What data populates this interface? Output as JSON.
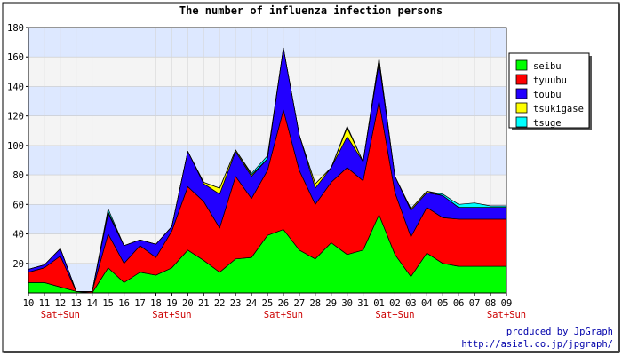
{
  "chart_data": {
    "type": "area",
    "stacked": true,
    "title": "The number of influenza infection persons",
    "categories": [
      "10",
      "11",
      "12",
      "13",
      "14",
      "15",
      "16",
      "17",
      "18",
      "19",
      "20",
      "21",
      "22",
      "23",
      "24",
      "25",
      "26",
      "27",
      "28",
      "29",
      "30",
      "31",
      "01",
      "02",
      "03",
      "04",
      "05",
      "06",
      "07",
      "08",
      "09"
    ],
    "weekend_marks": [
      {
        "category": "12",
        "label": "Sat+Sun"
      },
      {
        "category": "19",
        "label": "Sat+Sun"
      },
      {
        "category": "26",
        "label": "Sat+Sun"
      },
      {
        "category": "02",
        "label": "Sat+Sun"
      },
      {
        "category": "09",
        "label": "Sat+Sun"
      }
    ],
    "ylim": [
      0,
      180
    ],
    "yticks": [
      20,
      40,
      60,
      80,
      100,
      120,
      140,
      160,
      180
    ],
    "grid": true,
    "legend_position": "right",
    "series": [
      {
        "name": "seibu",
        "color": "#00ff00",
        "values": [
          7,
          7,
          4,
          1,
          0,
          17,
          7,
          14,
          12,
          17,
          29,
          22,
          14,
          23,
          24,
          39,
          43,
          29,
          23,
          34,
          26,
          29,
          53,
          26,
          11,
          27,
          20,
          18,
          18,
          18,
          18
        ]
      },
      {
        "name": "tyuubu",
        "color": "#ff0000",
        "values": [
          7,
          10,
          21,
          0,
          1,
          23,
          13,
          18,
          12,
          25,
          43,
          40,
          30,
          56,
          40,
          44,
          81,
          54,
          37,
          41,
          59,
          47,
          77,
          42,
          27,
          31,
          31,
          32,
          32,
          32,
          32
        ]
      },
      {
        "name": "toubu",
        "color": "#2200ff",
        "values": [
          2,
          2,
          5,
          0,
          0,
          14,
          12,
          4,
          9,
          3,
          24,
          12,
          23,
          17,
          15,
          8,
          42,
          24,
          11,
          10,
          21,
          13,
          26,
          11,
          18,
          10,
          15,
          8,
          8,
          8,
          8
        ]
      },
      {
        "name": "tsukigase",
        "color": "#ffff00",
        "values": [
          0,
          0,
          0,
          0,
          0,
          1,
          0,
          0,
          0,
          0,
          0,
          1,
          4,
          1,
          1,
          0,
          0,
          0,
          3,
          0,
          6,
          0,
          3,
          0,
          1,
          1,
          0,
          0,
          0,
          0,
          0
        ]
      },
      {
        "name": "tsuge",
        "color": "#00ffff",
        "values": [
          0,
          0,
          0,
          0,
          0,
          2,
          0,
          0,
          0,
          0,
          0,
          0,
          0,
          0,
          1,
          2,
          0,
          0,
          0,
          0,
          1,
          0,
          0,
          0,
          0,
          0,
          1,
          2,
          3,
          1,
          1
        ]
      }
    ]
  },
  "footer": {
    "credit_line1": "produced by JpGraph",
    "credit_line2": "http://asial.co.jp/jpgraph/"
  },
  "colors": {
    "band_blue": "#dde8ff",
    "band_grey": "#f4f4f4",
    "weekend_label": "#cc0000",
    "credit_text": "#0000aa"
  }
}
